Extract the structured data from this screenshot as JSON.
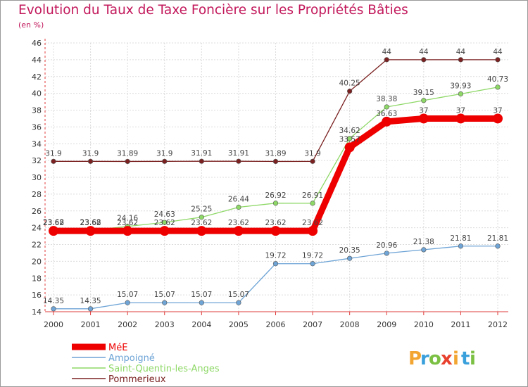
{
  "header": {
    "title": "Evolution du Taux de Taxe Foncière sur les Propriétés Bâties",
    "subtitle": "(en %)"
  },
  "logo": {
    "letters": [
      "P",
      "r",
      "o",
      "x",
      "i",
      "t",
      "i"
    ],
    "colors": [
      "#f2a531",
      "#3aa0dc",
      "#7bc043",
      "#e8412e",
      "#f2a531",
      "#3aa0dc",
      "#7bc043"
    ]
  },
  "chart_data": {
    "type": "line",
    "x": [
      "2000",
      "2001",
      "2002",
      "2003",
      "2004",
      "2005",
      "2006",
      "2007",
      "2008",
      "2009",
      "2010",
      "2011",
      "2012"
    ],
    "ylim": [
      14,
      46
    ],
    "yticks": [
      14,
      16,
      18,
      20,
      22,
      24,
      26,
      28,
      30,
      32,
      34,
      36,
      38,
      40,
      42,
      44,
      46
    ],
    "grid": true,
    "legend_position": "bottom-left",
    "series": [
      {
        "name": "Pommerieux",
        "color": "#7b2121",
        "values": [
          31.9,
          31.9,
          31.89,
          31.9,
          31.91,
          31.91,
          31.89,
          31.9,
          40.25,
          44,
          44,
          44,
          44
        ],
        "labels": [
          "31.9",
          "31.9",
          "31.89",
          "31.9",
          "31.91",
          "31.91",
          "31.89",
          "31.9",
          "40.25",
          "44",
          "44",
          "44",
          "44"
        ]
      },
      {
        "name": "Saint-Quentin-les-Anges",
        "color": "#8ed867",
        "values": [
          23.68,
          23.68,
          24.16,
          24.63,
          25.25,
          26.44,
          26.92,
          26.91,
          34.62,
          38.38,
          39.15,
          39.93,
          40.73
        ],
        "labels": [
          "23.68",
          "23.68",
          "24.16",
          "24.63",
          "25.25",
          "26.44",
          "26.92",
          "26.91",
          "34.62",
          "38.38",
          "39.15",
          "39.93",
          "40.73"
        ]
      },
      {
        "name": "Ampoigné",
        "color": "#6ea4d6",
        "values": [
          14.35,
          14.35,
          15.07,
          15.07,
          15.07,
          15.07,
          19.72,
          19.72,
          20.35,
          20.96,
          21.38,
          21.81,
          21.81
        ],
        "labels": [
          "14.35",
          "14.35",
          "15.07",
          "15.07",
          "15.07",
          "15.07",
          "19.72",
          "19.72",
          "20.35",
          "20.96",
          "21.38",
          "21.81",
          "21.81"
        ]
      },
      {
        "name": "MéE",
        "color": "#ee0000",
        "values": [
          23.62,
          23.62,
          23.62,
          23.62,
          23.62,
          23.62,
          23.62,
          23.62,
          33.57,
          36.63,
          37,
          37,
          37
        ],
        "labels": [
          "23.62",
          "23.62",
          "23.62",
          "23.62",
          "23.62",
          "23.62",
          "23.62",
          "23.62",
          "33.57",
          "36.63",
          "37",
          "37",
          "37"
        ]
      }
    ],
    "legend": [
      "MéE",
      "Ampoigné",
      "Saint-Quentin-les-Anges",
      "Pommerieux"
    ]
  }
}
